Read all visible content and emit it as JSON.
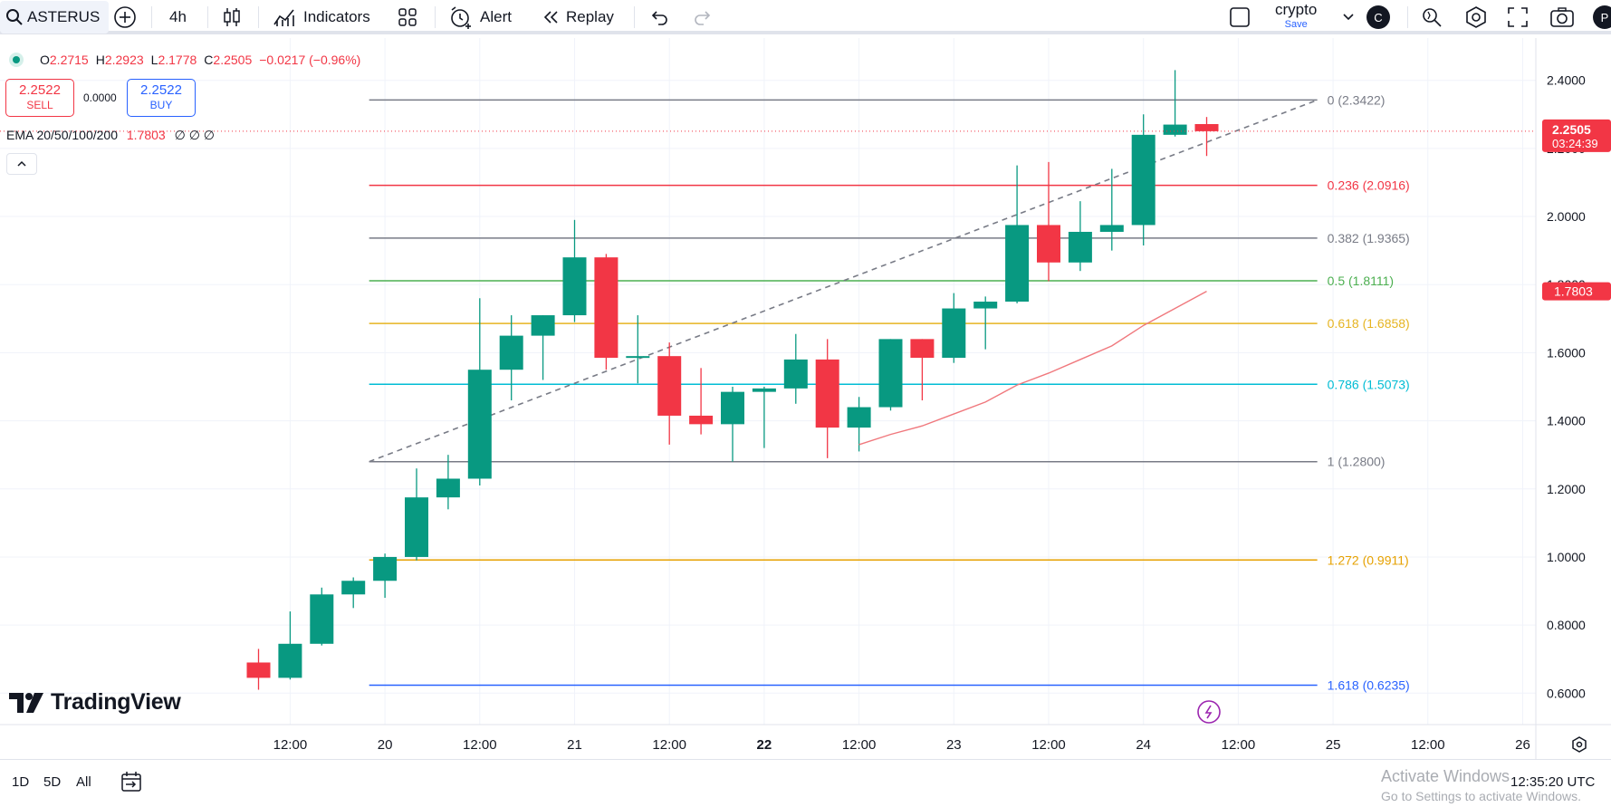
{
  "toolbar": {
    "symbol": "ASTERUS",
    "interval": "4h",
    "indicators_label": "Indicators",
    "alert_label": "Alert",
    "replay_label": "Replay",
    "layout_name": "crypto",
    "layout_save": "Save",
    "avatar_letter": "C",
    "profile_letter": "P"
  },
  "legend": {
    "o_label": "O",
    "o_value": "2.2715",
    "h_label": "H",
    "h_value": "2.2923",
    "l_label": "L",
    "l_value": "2.1778",
    "c_label": "C",
    "c_value": "2.2505",
    "change": "−0.0217 (−0.96%)"
  },
  "trade": {
    "sell_price": "2.2522",
    "sell_label": "SELL",
    "spread": "0.0000",
    "buy_price": "2.2522",
    "buy_label": "BUY"
  },
  "ema": {
    "label": "EMA 20/50/100/200",
    "value": "1.7803",
    "others": "∅ ∅ ∅"
  },
  "branding": "TradingView",
  "colors": {
    "up": "#089981",
    "down": "#f23645",
    "ema": "#f0787d"
  },
  "chart_data": {
    "type": "candlestick",
    "interval": "4h",
    "ylim": [
      0.5,
      2.55
    ],
    "y_ticks": [
      0.6,
      0.8,
      1.0,
      1.2,
      1.4,
      1.6,
      1.8,
      2.0,
      2.2,
      2.4
    ],
    "y_tick_labels": [
      "0.6000",
      "0.8000",
      "1.0000",
      "1.2000",
      "1.4000",
      "1.6000",
      "1.8000",
      "2.0000",
      "2.2000",
      "2.4000"
    ],
    "x_ticks": [
      {
        "bar": 1,
        "label": "12:00",
        "bold": false
      },
      {
        "bar": 4,
        "label": "20",
        "bold": false
      },
      {
        "bar": 7,
        "label": "12:00",
        "bold": false
      },
      {
        "bar": 10,
        "label": "21",
        "bold": false
      },
      {
        "bar": 13,
        "label": "12:00",
        "bold": false
      },
      {
        "bar": 16,
        "label": "22",
        "bold": true
      },
      {
        "bar": 19,
        "label": "12:00",
        "bold": false
      },
      {
        "bar": 22,
        "label": "23",
        "bold": false
      },
      {
        "bar": 25,
        "label": "12:00",
        "bold": false
      },
      {
        "bar": 28,
        "label": "24",
        "bold": false
      },
      {
        "bar": 31,
        "label": "12:00",
        "bold": false
      },
      {
        "bar": 34,
        "label": "25",
        "bold": false
      },
      {
        "bar": 37,
        "label": "12:00",
        "bold": false
      },
      {
        "bar": 40,
        "label": "26",
        "bold": false
      }
    ],
    "candles": [
      {
        "o": 0.69,
        "h": 0.73,
        "l": 0.61,
        "c": 0.645
      },
      {
        "o": 0.645,
        "h": 0.84,
        "l": 0.64,
        "c": 0.745
      },
      {
        "o": 0.745,
        "h": 0.91,
        "l": 0.74,
        "c": 0.89
      },
      {
        "o": 0.89,
        "h": 0.94,
        "l": 0.85,
        "c": 0.93
      },
      {
        "o": 0.93,
        "h": 1.01,
        "l": 0.88,
        "c": 1.0
      },
      {
        "o": 1.0,
        "h": 1.26,
        "l": 0.99,
        "c": 1.175
      },
      {
        "o": 1.175,
        "h": 1.3,
        "l": 1.14,
        "c": 1.23
      },
      {
        "o": 1.23,
        "h": 1.76,
        "l": 1.21,
        "c": 1.55
      },
      {
        "o": 1.55,
        "h": 1.71,
        "l": 1.46,
        "c": 1.65
      },
      {
        "o": 1.65,
        "h": 1.71,
        "l": 1.52,
        "c": 1.71
      },
      {
        "o": 1.71,
        "h": 1.99,
        "l": 1.69,
        "c": 1.88
      },
      {
        "o": 1.88,
        "h": 1.89,
        "l": 1.55,
        "c": 1.585
      },
      {
        "o": 1.585,
        "h": 1.71,
        "l": 1.51,
        "c": 1.59
      },
      {
        "o": 1.59,
        "h": 1.63,
        "l": 1.33,
        "c": 1.415
      },
      {
        "o": 1.415,
        "h": 1.555,
        "l": 1.36,
        "c": 1.39
      },
      {
        "o": 1.39,
        "h": 1.5,
        "l": 1.28,
        "c": 1.485
      },
      {
        "o": 1.485,
        "h": 1.5,
        "l": 1.32,
        "c": 1.495
      },
      {
        "o": 1.495,
        "h": 1.655,
        "l": 1.45,
        "c": 1.58
      },
      {
        "o": 1.58,
        "h": 1.64,
        "l": 1.29,
        "c": 1.38
      },
      {
        "o": 1.38,
        "h": 1.47,
        "l": 1.31,
        "c": 1.44
      },
      {
        "o": 1.44,
        "h": 1.64,
        "l": 1.43,
        "c": 1.64
      },
      {
        "o": 1.64,
        "h": 1.64,
        "l": 1.46,
        "c": 1.585
      },
      {
        "o": 1.585,
        "h": 1.775,
        "l": 1.57,
        "c": 1.73
      },
      {
        "o": 1.73,
        "h": 1.765,
        "l": 1.61,
        "c": 1.75
      },
      {
        "o": 1.75,
        "h": 2.15,
        "l": 1.745,
        "c": 1.975
      },
      {
        "o": 1.975,
        "h": 2.16,
        "l": 1.81,
        "c": 1.865
      },
      {
        "o": 1.865,
        "h": 2.045,
        "l": 1.84,
        "c": 1.955
      },
      {
        "o": 1.955,
        "h": 2.14,
        "l": 1.9,
        "c": 1.975
      },
      {
        "o": 1.975,
        "h": 2.3,
        "l": 1.915,
        "c": 2.24
      },
      {
        "o": 2.24,
        "h": 2.43,
        "l": 2.235,
        "c": 2.27
      },
      {
        "o": 2.2715,
        "h": 2.2923,
        "l": 2.1778,
        "c": 2.2505
      }
    ],
    "ema20": [
      {
        "bar": 19,
        "value": 1.33
      },
      {
        "bar": 20,
        "value": 1.36
      },
      {
        "bar": 21,
        "value": 1.385
      },
      {
        "bar": 22,
        "value": 1.42
      },
      {
        "bar": 23,
        "value": 1.455
      },
      {
        "bar": 24,
        "value": 1.505
      },
      {
        "bar": 25,
        "value": 1.54
      },
      {
        "bar": 26,
        "value": 1.58
      },
      {
        "bar": 27,
        "value": 1.62
      },
      {
        "bar": 28,
        "value": 1.68
      },
      {
        "bar": 29,
        "value": 1.73
      },
      {
        "bar": 30,
        "value": 1.7803
      }
    ],
    "fib_levels": [
      {
        "label": "0 (2.3422)",
        "value": 2.3422,
        "color": "#787b86"
      },
      {
        "label": "0.236 (2.0916)",
        "value": 2.0916,
        "color": "#f23645"
      },
      {
        "label": "0.382 (1.9365)",
        "value": 1.9365,
        "color": "#787b86"
      },
      {
        "label": "0.5 (1.8111)",
        "value": 1.8111,
        "color": "#4caf50"
      },
      {
        "label": "0.618 (1.6858)",
        "value": 1.6858,
        "color": "#e6b421"
      },
      {
        "label": "0.786 (1.5073)",
        "value": 1.5073,
        "color": "#00bcd4"
      },
      {
        "label": "1 (1.2800)",
        "value": 1.28,
        "color": "#787b86"
      },
      {
        "label": "1.272 (0.9911)",
        "value": 0.9911,
        "color": "#e6a100"
      },
      {
        "label": "1.618 (0.6235)",
        "value": 0.6235,
        "color": "#2962ff"
      }
    ],
    "fib_start_bar": 3.5,
    "fib_end_bar": 33.5,
    "trend_line": {
      "from_bar": 3.5,
      "from_value": 1.28,
      "to_bar": 33.5,
      "to_value": 2.3422
    },
    "last_price": {
      "value": 2.2505,
      "label": "2.2505",
      "countdown": "03:24:39",
      "color": "#f23645"
    },
    "ema_price": {
      "value": 1.7803,
      "label": "1.7803",
      "color": "#f23645"
    }
  },
  "bottom": {
    "range_1d": "1D",
    "range_5d": "5D",
    "range_all": "All",
    "clock": "12:35:20 UTC"
  },
  "os_watermark": {
    "title": "Activate Windows",
    "subtitle": "Go to Settings to activate Windows."
  }
}
